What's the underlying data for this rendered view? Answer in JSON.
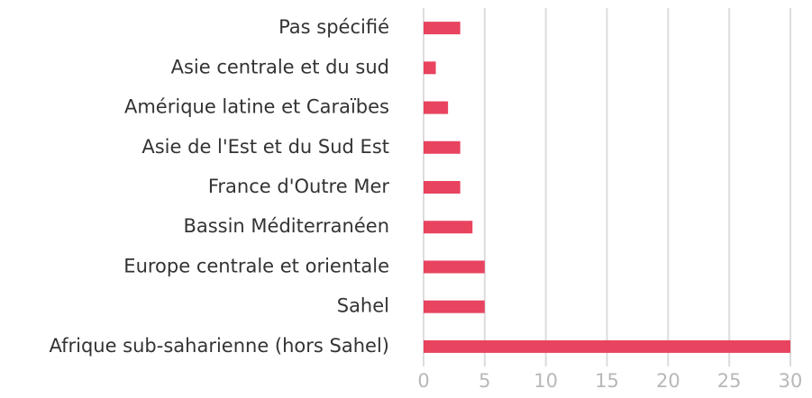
{
  "chart_data": {
    "type": "bar",
    "orientation": "horizontal",
    "categories": [
      "Pas spécifié",
      "Asie centrale et du sud",
      "Amérique latine et Caraïbes",
      "Asie de l'Est et du Sud Est",
      "France d'Outre Mer",
      "Bassin Méditerranéen",
      "Europe centrale et orientale",
      "Sahel",
      "Afrique sub-saharienne (hors Sahel)"
    ],
    "values": [
      3,
      1,
      2,
      3,
      3,
      4,
      5,
      5,
      30
    ],
    "color": "#e8435f",
    "xlim": [
      0,
      30
    ],
    "xticks": [
      0,
      5,
      10,
      15,
      20,
      25,
      30
    ],
    "grid": true
  }
}
